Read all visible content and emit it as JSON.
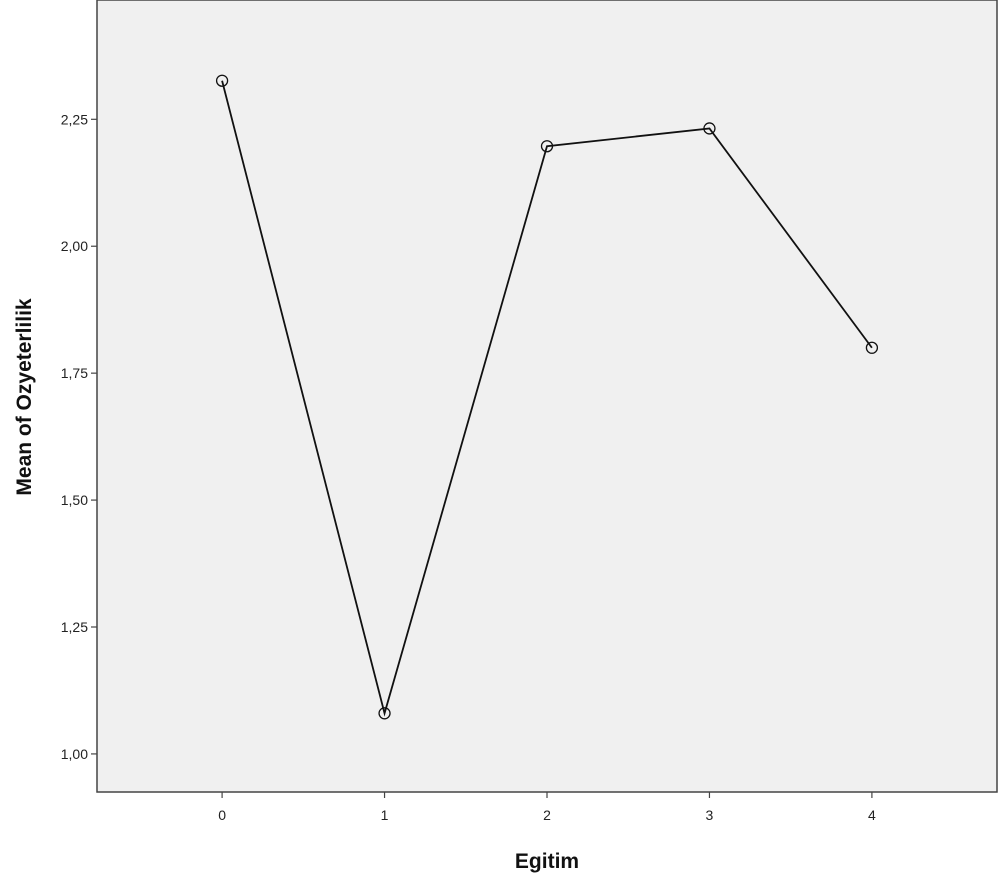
{
  "chart_data": {
    "type": "line",
    "title": "",
    "xlabel": "Egitim",
    "ylabel": "Mean of Ozyeterlilik",
    "x": [
      0,
      1,
      2,
      3,
      4
    ],
    "x_tick_labels": [
      "0",
      "1",
      "2",
      "3",
      "4"
    ],
    "series": [
      {
        "name": "",
        "values": [
          2.326,
          1.08,
          2.197,
          2.232,
          1.8
        ]
      }
    ],
    "xlim": [
      -0.77,
      4.77
    ],
    "ylim": [
      0.925,
      2.485
    ],
    "y_ticks": [
      1.0,
      1.25,
      1.5,
      1.75,
      2.0,
      2.25
    ],
    "y_tick_labels": [
      "1,00",
      "1,25",
      "1,50",
      "1,75",
      "2,00",
      "2,25"
    ],
    "marker": "open-circle",
    "grid": false,
    "legend": "none",
    "colors": {
      "plot_background": "#f0f0f0",
      "line": "#111111",
      "frame": "#444444"
    }
  }
}
